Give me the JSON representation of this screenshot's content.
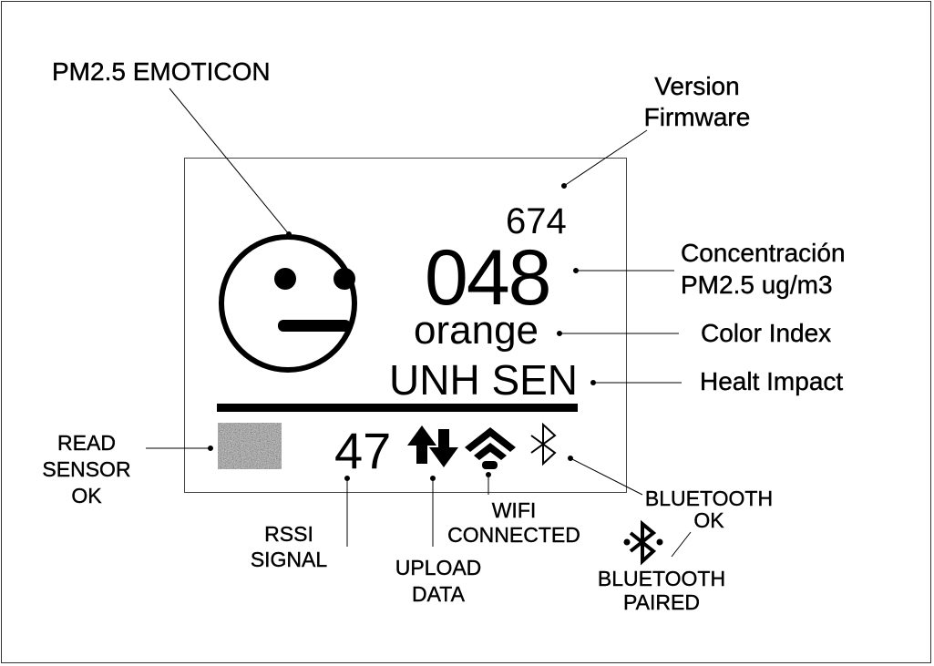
{
  "diagram": {
    "labels": {
      "emoticon": "PM2.5 EMOTICON",
      "version_line1": "Version",
      "version_line2": "Firmware",
      "concentration_line1": "Concentración",
      "concentration_line2": "PM2.5 ug/m3",
      "color_index": "Color Index",
      "health_impact": "Healt Impact",
      "read_sensor_line1": "READ",
      "read_sensor_line2": "SENSOR",
      "read_sensor_line3": "OK",
      "rssi_line1": "RSSI",
      "rssi_line2": "SIGNAL",
      "upload_line1": "UPLOAD",
      "upload_line2": "DATA",
      "wifi_line1": "WIFI",
      "wifi_line2": "CONNECTED",
      "bt_ok_line1": "BLUETOOTH",
      "bt_ok_line2": "OK",
      "bt_paired_line1": "BLUETOOTH",
      "bt_paired_line2": "PAIRED"
    },
    "display": {
      "firmware_version": "674",
      "pm25_value": "048",
      "color_index": "orange",
      "health_impact": "UNH SEN",
      "rssi_value": "47"
    },
    "icons": [
      "neutral-face-icon",
      "sensor-status-icon",
      "upload-arrows-icon",
      "wifi-icon",
      "bluetooth-icon",
      "bluetooth-paired-icon"
    ]
  }
}
